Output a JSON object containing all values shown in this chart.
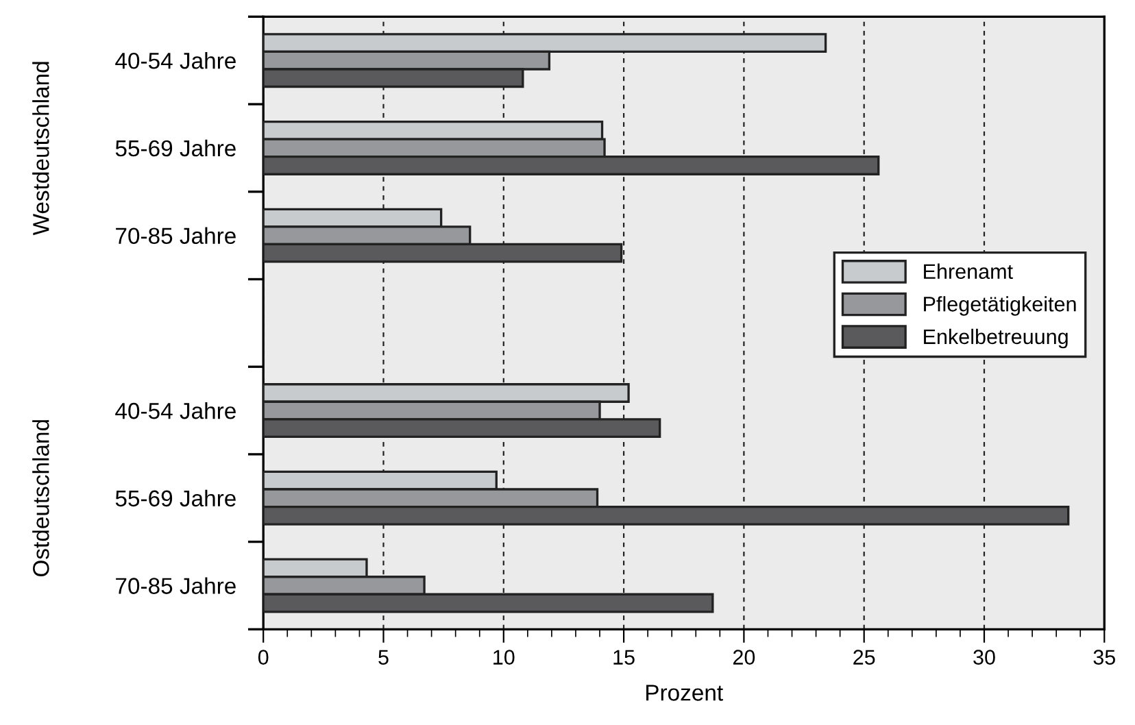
{
  "chart_data": {
    "type": "bar",
    "orientation": "horizontal",
    "xlabel": "Prozent",
    "categories": [
      "40-54 Jahre",
      "55-69 Jahre",
      "70-85 Jahre",
      null,
      "40-54 Jahre",
      "55-69 Jahre",
      "70-85 Jahre"
    ],
    "series": [
      {
        "name": "Ehrenamt",
        "color": "#c8cbce",
        "values": [
          23.4,
          14.1,
          7.4,
          null,
          15.2,
          9.7,
          4.3
        ]
      },
      {
        "name": "Pflegetätigkeiten",
        "color": "#97989b",
        "values": [
          11.9,
          14.2,
          8.6,
          null,
          14.0,
          13.9,
          6.7
        ]
      },
      {
        "name": "Enkelbetreuung",
        "color": "#5a5a5c",
        "values": [
          10.8,
          25.6,
          14.9,
          null,
          16.5,
          33.5,
          18.7
        ]
      }
    ],
    "annotations": [
      "Westdeutschland",
      "Ostdeutschland"
    ],
    "xlim": [
      0,
      35
    ],
    "xticks": [
      0,
      5,
      10,
      15,
      20,
      25,
      30,
      35
    ],
    "grid": "x",
    "legend": "right"
  }
}
